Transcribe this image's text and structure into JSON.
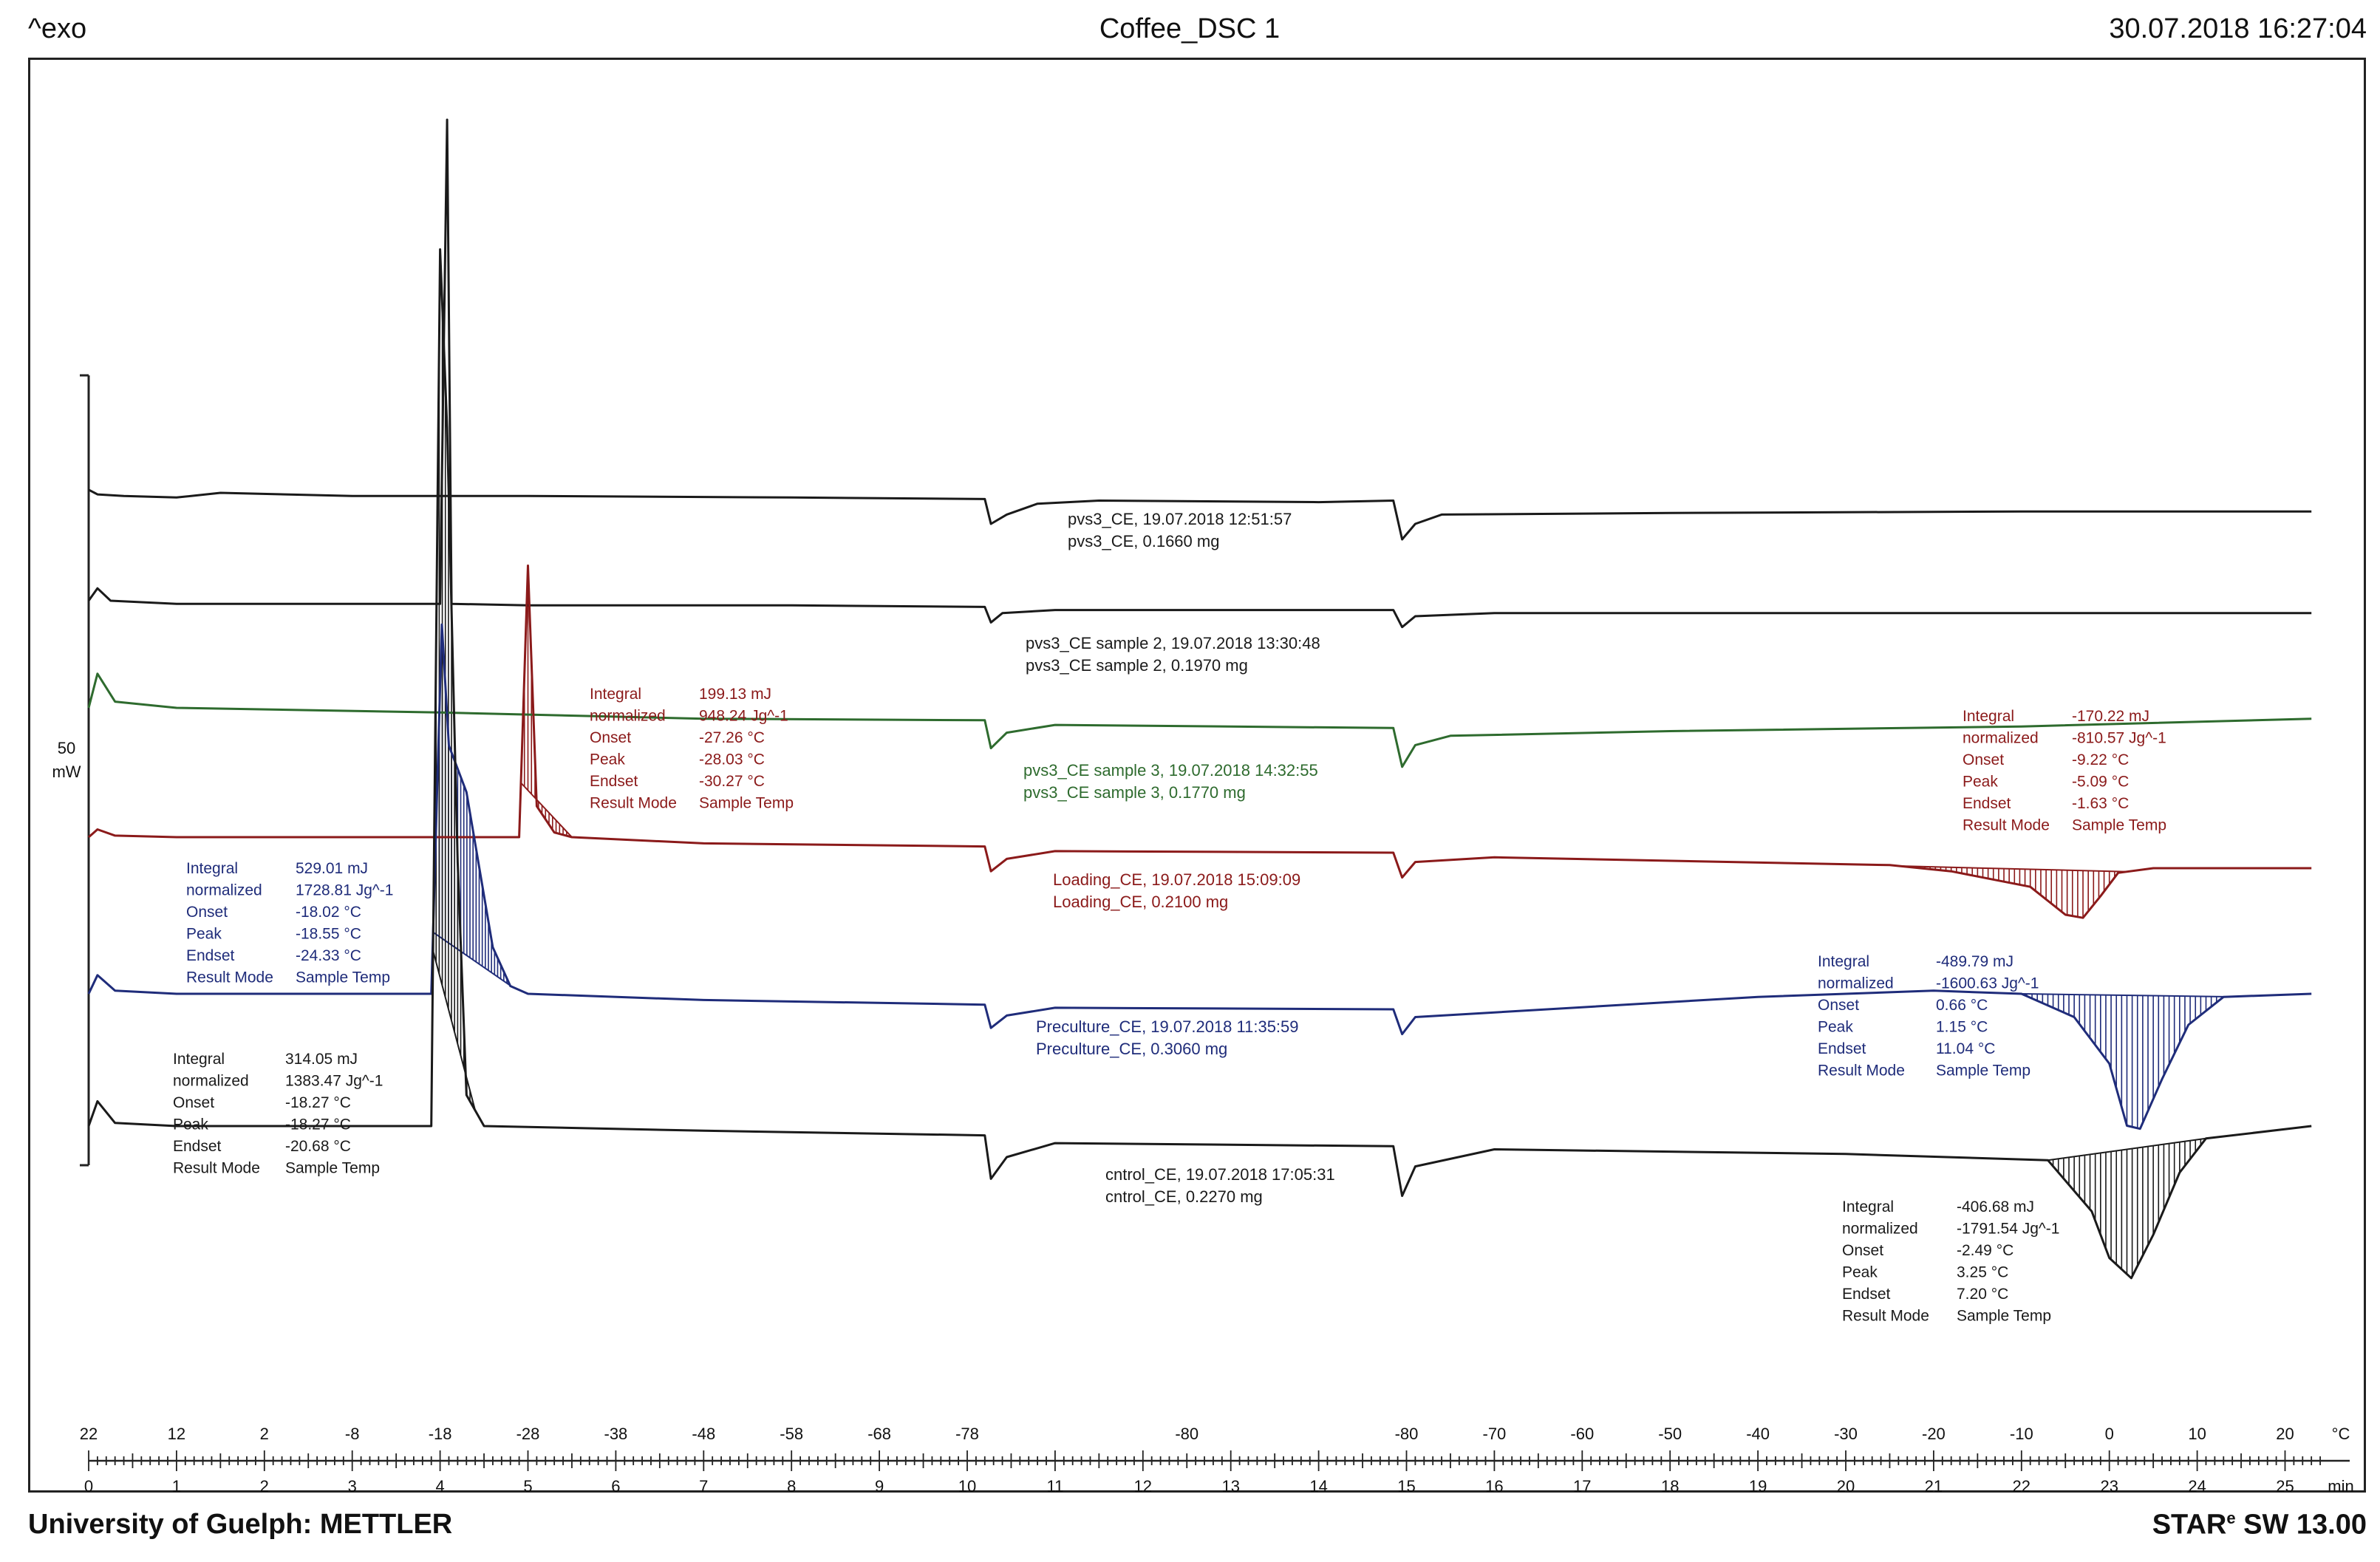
{
  "header": {
    "left": "^exo",
    "center": "Coffee_DSC 1",
    "right": "30.07.2018 16:27:04"
  },
  "footer": {
    "left": "University of Guelph: METTLER",
    "right_main": "STAR",
    "right_sup": "e",
    "right_rest": " SW 13.00"
  },
  "chart_data": {
    "type": "line",
    "title": "Coffee_DSC 1",
    "scale_bar": {
      "value": "50",
      "unit": "mW"
    },
    "x_time": {
      "label": "min",
      "ticks": [
        0,
        1,
        2,
        3,
        4,
        5,
        6,
        7,
        8,
        9,
        10,
        11,
        12,
        13,
        14,
        15,
        16,
        17,
        18,
        19,
        20,
        21,
        22,
        23,
        24,
        25
      ],
      "range": [
        0,
        25.4
      ]
    },
    "x_temp": {
      "label": "°C",
      "ticks": [
        {
          "t": 0,
          "label": "22"
        },
        {
          "t": 1,
          "label": "12"
        },
        {
          "t": 2,
          "label": "2"
        },
        {
          "t": 3,
          "label": "-8"
        },
        {
          "t": 4,
          "label": "-18"
        },
        {
          "t": 5,
          "label": "-28"
        },
        {
          "t": 6,
          "label": "-38"
        },
        {
          "t": 7,
          "label": "-48"
        },
        {
          "t": 8,
          "label": "-58"
        },
        {
          "t": 9,
          "label": "-68"
        },
        {
          "t": 10,
          "label": "-78"
        },
        {
          "t": 12.5,
          "label": "-80"
        },
        {
          "t": 15,
          "label": "-80"
        },
        {
          "t": 16,
          "label": "-70"
        },
        {
          "t": 17,
          "label": "-60"
        },
        {
          "t": 18,
          "label": "-50"
        },
        {
          "t": 19,
          "label": "-40"
        },
        {
          "t": 20,
          "label": "-30"
        },
        {
          "t": 21,
          "label": "-20"
        },
        {
          "t": 22,
          "label": "-10"
        },
        {
          "t": 23,
          "label": "0"
        },
        {
          "t": 24,
          "label": "10"
        },
        {
          "t": 25,
          "label": "20"
        }
      ]
    },
    "series": [
      {
        "name": "pvs3_CE",
        "color": "#1a1a1a",
        "label_line1": "pvs3_CE, 19.07.2018 12:51:57",
        "label_line2": "pvs3_CE, 0.1660 mg",
        "points": [
          [
            0,
            0.02
          ],
          [
            0.1,
            -0.01
          ],
          [
            0.4,
            -0.02
          ],
          [
            1.0,
            -0.03
          ],
          [
            1.5,
            0.0
          ],
          [
            3,
            -0.02
          ],
          [
            5,
            -0.02
          ],
          [
            8,
            -0.03
          ],
          [
            10.2,
            -0.04
          ],
          [
            10.27,
            -0.2
          ],
          [
            10.45,
            -0.14
          ],
          [
            10.8,
            -0.07
          ],
          [
            11.5,
            -0.05
          ],
          [
            14.0,
            -0.06
          ],
          [
            14.85,
            -0.05
          ],
          [
            14.95,
            -0.3
          ],
          [
            15.1,
            -0.2
          ],
          [
            15.4,
            -0.14
          ],
          [
            18,
            -0.13
          ],
          [
            22,
            -0.12
          ],
          [
            25.3,
            -0.12
          ]
        ]
      },
      {
        "name": "pvs3_CE sample 2",
        "color": "#1a1a1a",
        "label_line1": "pvs3_CE sample 2, 19.07.2018 13:30:48",
        "label_line2": "pvs3_CE sample 2, 0.1970 mg",
        "points": [
          [
            0,
            0.0
          ],
          [
            0.1,
            0.08
          ],
          [
            0.25,
            0.0
          ],
          [
            1,
            -0.02
          ],
          [
            3,
            -0.02
          ],
          [
            4.0,
            -0.02
          ],
          [
            4.08,
            3.1
          ],
          [
            4.13,
            -0.02
          ],
          [
            5,
            -0.03
          ],
          [
            8,
            -0.03
          ],
          [
            10.2,
            -0.04
          ],
          [
            10.27,
            -0.14
          ],
          [
            10.4,
            -0.08
          ],
          [
            11,
            -0.06
          ],
          [
            14.85,
            -0.06
          ],
          [
            14.95,
            -0.17
          ],
          [
            15.1,
            -0.1
          ],
          [
            16,
            -0.08
          ],
          [
            22,
            -0.08
          ],
          [
            25.3,
            -0.08
          ]
        ]
      },
      {
        "name": "pvs3_CE sample 3",
        "color": "#2e6b2e",
        "label_line1": "pvs3_CE sample 3, 19.07.2018 14:32:55",
        "label_line2": "pvs3_CE sample 3, 0.1770 mg",
        "points": [
          [
            0,
            0.0
          ],
          [
            0.1,
            0.22
          ],
          [
            0.3,
            0.04
          ],
          [
            1,
            0.0
          ],
          [
            4,
            -0.03
          ],
          [
            7,
            -0.07
          ],
          [
            10.2,
            -0.08
          ],
          [
            10.27,
            -0.26
          ],
          [
            10.45,
            -0.16
          ],
          [
            11,
            -0.11
          ],
          [
            14.85,
            -0.13
          ],
          [
            14.95,
            -0.38
          ],
          [
            15.1,
            -0.24
          ],
          [
            15.5,
            -0.18
          ],
          [
            18,
            -0.15
          ],
          [
            22,
            -0.12
          ],
          [
            25.3,
            -0.07
          ]
        ]
      },
      {
        "name": "Loading_CE",
        "color": "#8b1a1a",
        "label_line1": "Loading_CE, 19.07.2018 15:09:09",
        "label_line2": "Loading_CE, 0.2100 mg",
        "points": [
          [
            0,
            0.0
          ],
          [
            0.1,
            0.05
          ],
          [
            0.3,
            0.01
          ],
          [
            1,
            0.0
          ],
          [
            4,
            0.0
          ],
          [
            4.9,
            0.0
          ],
          [
            5.0,
            1.75
          ],
          [
            5.1,
            0.2
          ],
          [
            5.3,
            0.03
          ],
          [
            5.5,
            0.0
          ],
          [
            7,
            -0.04
          ],
          [
            10.2,
            -0.06
          ],
          [
            10.27,
            -0.22
          ],
          [
            10.45,
            -0.14
          ],
          [
            11,
            -0.09
          ],
          [
            14.85,
            -0.1
          ],
          [
            14.95,
            -0.26
          ],
          [
            15.1,
            -0.16
          ],
          [
            16,
            -0.13
          ],
          [
            20.5,
            -0.18
          ],
          [
            21.2,
            -0.22
          ],
          [
            22.1,
            -0.32
          ],
          [
            22.5,
            -0.5
          ],
          [
            22.7,
            -0.52
          ],
          [
            22.9,
            -0.38
          ],
          [
            23.1,
            -0.23
          ],
          [
            23.5,
            -0.2
          ],
          [
            25.3,
            -0.2
          ]
        ]
      },
      {
        "name": "Preculture_CE",
        "color": "#1f2c7a",
        "label_line1": "Preculture_CE, 19.07.2018 11:35:59",
        "label_line2": "Preculture_CE, 0.3060 mg",
        "points": [
          [
            0,
            0.0
          ],
          [
            0.1,
            0.12
          ],
          [
            0.3,
            0.02
          ],
          [
            1,
            0.0
          ],
          [
            3.9,
            0.0
          ],
          [
            4.02,
            2.38
          ],
          [
            4.1,
            1.6
          ],
          [
            4.3,
            1.3
          ],
          [
            4.45,
            0.8
          ],
          [
            4.6,
            0.3
          ],
          [
            4.8,
            0.05
          ],
          [
            5,
            0.0
          ],
          [
            7,
            -0.04
          ],
          [
            10.2,
            -0.07
          ],
          [
            10.27,
            -0.22
          ],
          [
            10.45,
            -0.14
          ],
          [
            11,
            -0.09
          ],
          [
            14.85,
            -0.1
          ],
          [
            14.95,
            -0.26
          ],
          [
            15.1,
            -0.15
          ],
          [
            16,
            -0.12
          ],
          [
            19,
            -0.02
          ],
          [
            21,
            0.02
          ],
          [
            22.0,
            0.0
          ],
          [
            22.6,
            -0.15
          ],
          [
            23.0,
            -0.45
          ],
          [
            23.2,
            -0.85
          ],
          [
            23.35,
            -0.87
          ],
          [
            23.6,
            -0.55
          ],
          [
            23.9,
            -0.2
          ],
          [
            24.3,
            -0.02
          ],
          [
            25.3,
            0.0
          ]
        ]
      },
      {
        "name": "cntrol_CE",
        "color": "#1a1a1a",
        "label_line1": "cntrol_CE, 19.07.2018 17:05:31",
        "label_line2": "cntrol_CE, 0.2270 mg",
        "points": [
          [
            0,
            0.0
          ],
          [
            0.1,
            0.16
          ],
          [
            0.3,
            0.02
          ],
          [
            1,
            0.0
          ],
          [
            3.9,
            0.0
          ],
          [
            4.0,
            5.65
          ],
          [
            4.08,
            4.5
          ],
          [
            4.2,
            1.7
          ],
          [
            4.3,
            0.2
          ],
          [
            4.5,
            0.0
          ],
          [
            7,
            -0.03
          ],
          [
            10.2,
            -0.06
          ],
          [
            10.27,
            -0.34
          ],
          [
            10.45,
            -0.2
          ],
          [
            11,
            -0.11
          ],
          [
            14.85,
            -0.13
          ],
          [
            14.95,
            -0.45
          ],
          [
            15.1,
            -0.26
          ],
          [
            16,
            -0.15
          ],
          [
            20,
            -0.18
          ],
          [
            22.3,
            -0.22
          ],
          [
            22.8,
            -0.55
          ],
          [
            23.0,
            -0.85
          ],
          [
            23.25,
            -0.98
          ],
          [
            23.5,
            -0.7
          ],
          [
            23.8,
            -0.3
          ],
          [
            24.1,
            -0.08
          ],
          [
            25.3,
            0.0
          ]
        ]
      }
    ],
    "annotations": [
      {
        "series": "Loading_CE",
        "color": "#8b1a1a",
        "rows": [
          [
            "Integral",
            "199.13 mJ"
          ],
          [
            "  normalized",
            "948.24 Jg^-1"
          ],
          [
            "Onset",
            "-27.26 °C"
          ],
          [
            "Peak",
            "-28.03 °C"
          ],
          [
            "Endset",
            "-30.27 °C"
          ],
          [
            "Result Mode",
            "Sample Temp"
          ]
        ]
      },
      {
        "series": "Loading_CE",
        "color": "#8b1a1a",
        "rows": [
          [
            "Integral",
            "-170.22 mJ"
          ],
          [
            "  normalized",
            "-810.57 Jg^-1"
          ],
          [
            "Onset",
            "-9.22 °C"
          ],
          [
            "Peak",
            "-5.09 °C"
          ],
          [
            "Endset",
            "-1.63 °C"
          ],
          [
            "Result Mode",
            "Sample Temp"
          ]
        ]
      },
      {
        "series": "Preculture_CE",
        "color": "#1f2c7a",
        "rows": [
          [
            "Integral",
            "529.01 mJ"
          ],
          [
            "  normalized",
            "1728.81 Jg^-1"
          ],
          [
            "Onset",
            "-18.02 °C"
          ],
          [
            "Peak",
            "-18.55 °C"
          ],
          [
            "Endset",
            "-24.33 °C"
          ],
          [
            "Result Mode",
            "Sample Temp"
          ]
        ]
      },
      {
        "series": "Preculture_CE",
        "color": "#1f2c7a",
        "rows": [
          [
            "Integral",
            "-489.79 mJ"
          ],
          [
            "  normalized",
            "-1600.63 Jg^-1"
          ],
          [
            "Onset",
            "0.66 °C"
          ],
          [
            "Peak",
            "1.15 °C"
          ],
          [
            "Endset",
            "11.04 °C"
          ],
          [
            "Result Mode",
            "Sample Temp"
          ]
        ]
      },
      {
        "series": "cntrol_CE",
        "color": "#1a1a1a",
        "rows": [
          [
            "Integral",
            "314.05 mJ"
          ],
          [
            "  normalized",
            "1383.47 Jg^-1"
          ],
          [
            "Onset",
            "-18.27 °C"
          ],
          [
            "Peak",
            "-18.27 °C"
          ],
          [
            "Endset",
            "-20.68 °C"
          ],
          [
            "Result Mode",
            "Sample Temp"
          ]
        ]
      },
      {
        "series": "cntrol_CE",
        "color": "#1a1a1a",
        "rows": [
          [
            "Integral",
            "-406.68 mJ"
          ],
          [
            "  normalized",
            "-1791.54 Jg^-1"
          ],
          [
            "Onset",
            "-2.49 °C"
          ],
          [
            "Peak",
            "3.25 °C"
          ],
          [
            "Endset",
            "7.20 °C"
          ],
          [
            "Result Mode",
            "Sample Temp"
          ]
        ]
      }
    ]
  }
}
